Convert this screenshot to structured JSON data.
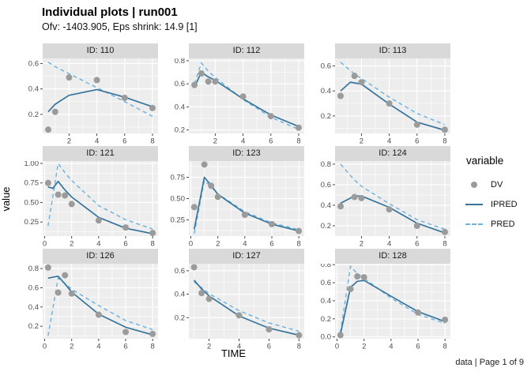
{
  "header": {
    "title": "Individual plots | run001",
    "subtitle": "Ofv: -1403.905, Eps shrink: 14.9 [1]"
  },
  "axes": {
    "x_label": "TIME",
    "y_label": "value"
  },
  "legend": {
    "title": "variable",
    "items": [
      {
        "label": "DV",
        "type": "point"
      },
      {
        "label": "IPRED",
        "type": "solid-line"
      },
      {
        "label": "PRED",
        "type": "dashed-line"
      }
    ]
  },
  "caption": "data | Page 1 of 9",
  "colors": {
    "dv": "#9b9b9b",
    "ipred": "#37749b",
    "pred": "#6fb4de",
    "panel_bg": "#ededed",
    "strip_bg": "#d9d9d9",
    "grid": "#ffffff",
    "tick_mark": "#333333",
    "tick_text": "#4d4d4d"
  },
  "chart_data": {
    "type": "line",
    "facet_by": "ID",
    "x": "TIME",
    "y": "value",
    "series_names": [
      "DV",
      "IPRED",
      "PRED"
    ],
    "facets": [
      {
        "strip": "ID: 110",
        "xlim": [
          0.1,
          8.4
        ],
        "ylim": [
          0.05,
          0.64
        ],
        "xticks": [
          2,
          4,
          6,
          8
        ],
        "xlabels": [
          "2",
          "4",
          "6",
          "8"
        ],
        "yticks": [
          0.2,
          0.4,
          0.6
        ],
        "ylabels": [
          "0.2",
          "0.4",
          "0.6"
        ],
        "dv": [
          [
            0.5,
            0.08
          ],
          [
            1,
            0.22
          ],
          [
            2,
            0.49
          ],
          [
            4,
            0.47
          ],
          [
            6,
            0.33
          ],
          [
            8,
            0.25
          ]
        ],
        "ipred": [
          [
            0.5,
            0.22
          ],
          [
            1,
            0.28
          ],
          [
            2,
            0.35
          ],
          [
            4,
            0.395
          ],
          [
            6,
            0.335
          ],
          [
            8,
            0.26
          ]
        ],
        "pred": [
          [
            0.5,
            0.61
          ],
          [
            1,
            0.575
          ],
          [
            2,
            0.52
          ],
          [
            4,
            0.41
          ],
          [
            6,
            0.3
          ],
          [
            8,
            0.185
          ]
        ]
      },
      {
        "strip": "ID: 112",
        "xlim": [
          0.1,
          8.4
        ],
        "ylim": [
          0.17,
          0.82
        ],
        "xticks": [
          2,
          4,
          6,
          8
        ],
        "xlabels": [
          "2",
          "4",
          "6",
          "8"
        ],
        "yticks": [
          0.2,
          0.4,
          0.6,
          0.8
        ],
        "ylabels": [
          "0.2",
          "0.4",
          "0.6",
          "0.8"
        ],
        "dv": [
          [
            0.5,
            0.59
          ],
          [
            1,
            0.69
          ],
          [
            1.5,
            0.62
          ],
          [
            2,
            0.62
          ],
          [
            4,
            0.49
          ],
          [
            6,
            0.32
          ],
          [
            8,
            0.22
          ]
        ],
        "ipred": [
          [
            0.5,
            0.57
          ],
          [
            1,
            0.7
          ],
          [
            1.5,
            0.66
          ],
          [
            2,
            0.63
          ],
          [
            4,
            0.47
          ],
          [
            6,
            0.33
          ],
          [
            8,
            0.23
          ]
        ],
        "pred": [
          [
            0.5,
            0.6
          ],
          [
            1,
            0.78
          ],
          [
            1.5,
            0.71
          ],
          [
            2,
            0.655
          ],
          [
            4,
            0.465
          ],
          [
            6,
            0.31
          ],
          [
            8,
            0.205
          ]
        ]
      },
      {
        "strip": "ID: 113",
        "xlim": [
          0.1,
          8.4
        ],
        "ylim": [
          0.06,
          0.66
        ],
        "xticks": [
          2,
          4,
          6,
          8
        ],
        "xlabels": [
          "2",
          "4",
          "6",
          "8"
        ],
        "yticks": [
          0.2,
          0.4,
          0.6
        ],
        "ylabels": [
          "0.2",
          "0.4",
          "0.6"
        ],
        "dv": [
          [
            0.5,
            0.36
          ],
          [
            1.5,
            0.52
          ],
          [
            2,
            0.47
          ],
          [
            4,
            0.3
          ],
          [
            6,
            0.13
          ],
          [
            8,
            0.09
          ]
        ],
        "ipred": [
          [
            0.5,
            0.4
          ],
          [
            1.2,
            0.47
          ],
          [
            2,
            0.455
          ],
          [
            4,
            0.295
          ],
          [
            6,
            0.15
          ],
          [
            8,
            0.085
          ]
        ],
        "pred": [
          [
            0.5,
            0.63
          ],
          [
            1.5,
            0.535
          ],
          [
            2,
            0.5
          ],
          [
            4,
            0.35
          ],
          [
            6,
            0.22
          ],
          [
            8,
            0.13
          ]
        ]
      },
      {
        "strip": "ID: 121",
        "xlim": [
          -0.15,
          8.4
        ],
        "ylim": [
          0.07,
          1.03
        ],
        "xticks": [
          0,
          2,
          4,
          6,
          8
        ],
        "xlabels": [
          "0",
          "2",
          "4",
          "6",
          "8"
        ],
        "yticks": [
          0.25,
          0.5,
          0.75,
          1.0
        ],
        "ylabels": [
          "0.25",
          "0.50",
          "0.75",
          "1.00"
        ],
        "dv": [
          [
            0.25,
            0.75
          ],
          [
            1,
            0.6
          ],
          [
            1.5,
            0.59
          ],
          [
            2,
            0.48
          ],
          [
            4,
            0.27
          ],
          [
            6,
            0.18
          ],
          [
            8,
            0.11
          ]
        ],
        "ipred": [
          [
            0.25,
            0.7
          ],
          [
            0.6,
            0.68
          ],
          [
            1,
            0.77
          ],
          [
            1.5,
            0.66
          ],
          [
            2,
            0.57
          ],
          [
            4,
            0.31
          ],
          [
            6,
            0.17
          ],
          [
            8,
            0.1
          ]
        ],
        "pred": [
          [
            0.25,
            0.2
          ],
          [
            1,
            1.0
          ],
          [
            1.5,
            0.88
          ],
          [
            2,
            0.78
          ],
          [
            4,
            0.46
          ],
          [
            6,
            0.28
          ],
          [
            8,
            0.16
          ]
        ]
      },
      {
        "strip": "ID: 123",
        "xlim": [
          -0.15,
          8.4
        ],
        "ylim": [
          0.06,
          0.94
        ],
        "xticks": [
          0,
          2,
          4,
          6,
          8
        ],
        "xlabels": [
          "0",
          "2",
          "4",
          "6",
          "8"
        ],
        "yticks": [
          0.25,
          0.5,
          0.75
        ],
        "ylabels": [
          "0.25",
          "0.50",
          "0.75"
        ],
        "dv": [
          [
            0.25,
            0.4
          ],
          [
            1,
            0.9
          ],
          [
            1.5,
            0.65
          ],
          [
            2,
            0.52
          ],
          [
            4,
            0.31
          ],
          [
            6,
            0.2
          ],
          [
            8,
            0.12
          ]
        ],
        "ipred": [
          [
            0.25,
            0.14
          ],
          [
            1,
            0.75
          ],
          [
            1.5,
            0.655
          ],
          [
            2,
            0.55
          ],
          [
            4,
            0.33
          ],
          [
            6,
            0.2
          ],
          [
            8,
            0.12
          ]
        ],
        "pred": [
          [
            0.25,
            0.09
          ],
          [
            1,
            0.71
          ],
          [
            1.5,
            0.64
          ],
          [
            2,
            0.555
          ],
          [
            4,
            0.345
          ],
          [
            6,
            0.215
          ],
          [
            8,
            0.135
          ]
        ]
      },
      {
        "strip": "ID: 124",
        "xlim": [
          0.1,
          8.4
        ],
        "ylim": [
          0.1,
          0.83
        ],
        "xticks": [
          2,
          4,
          6,
          8
        ],
        "xlabels": [
          "2",
          "4",
          "6",
          "8"
        ],
        "yticks": [
          0.2,
          0.4,
          0.6,
          0.8
        ],
        "ylabels": [
          "0.2",
          "0.4",
          "0.6",
          "0.8"
        ],
        "dv": [
          [
            0.5,
            0.39
          ],
          [
            1.5,
            0.48
          ],
          [
            2,
            0.47
          ],
          [
            4,
            0.36
          ],
          [
            6,
            0.2
          ],
          [
            8,
            0.14
          ]
        ],
        "ipred": [
          [
            0.5,
            0.42
          ],
          [
            1.5,
            0.49
          ],
          [
            2,
            0.49
          ],
          [
            4,
            0.38
          ],
          [
            6,
            0.225
          ],
          [
            8,
            0.13
          ]
        ],
        "pred": [
          [
            0.5,
            0.8
          ],
          [
            1.5,
            0.645
          ],
          [
            2,
            0.585
          ],
          [
            4,
            0.415
          ],
          [
            6,
            0.26
          ],
          [
            8,
            0.165
          ]
        ]
      },
      {
        "strip": "ID: 126",
        "xlim": [
          -0.15,
          8.4
        ],
        "ylim": [
          0.07,
          0.85
        ],
        "xticks": [
          0,
          2,
          4,
          6,
          8
        ],
        "xlabels": [
          "0",
          "2",
          "4",
          "6",
          "8"
        ],
        "yticks": [
          0.2,
          0.4,
          0.6,
          0.8
        ],
        "ylabels": [
          "0.2",
          "0.4",
          "0.6",
          "0.8"
        ],
        "dv": [
          [
            0.25,
            0.81
          ],
          [
            1,
            0.55
          ],
          [
            1.5,
            0.73
          ],
          [
            2,
            0.54
          ],
          [
            4,
            0.32
          ],
          [
            6,
            0.14
          ],
          [
            8,
            0.12
          ]
        ],
        "ipred": [
          [
            0.25,
            0.7
          ],
          [
            1,
            0.72
          ],
          [
            1.5,
            0.64
          ],
          [
            2,
            0.555
          ],
          [
            4,
            0.325
          ],
          [
            6,
            0.19
          ],
          [
            8,
            0.11
          ]
        ],
        "pred": [
          [
            0.25,
            0.1
          ],
          [
            1,
            0.7
          ],
          [
            1.5,
            0.645
          ],
          [
            2,
            0.585
          ],
          [
            4,
            0.415
          ],
          [
            6,
            0.26
          ],
          [
            8,
            0.165
          ]
        ]
      },
      {
        "strip": "ID: 127",
        "xlim": [
          0.65,
          8.35
        ],
        "ylim": [
          0.02,
          0.66
        ],
        "xticks": [
          2,
          4,
          6,
          8
        ],
        "xlabels": [
          "2",
          "4",
          "6",
          "8"
        ],
        "yticks": [
          0.2,
          0.4,
          0.6
        ],
        "ylabels": [
          "0.2",
          "0.4",
          "0.6"
        ],
        "dv": [
          [
            1,
            0.63
          ],
          [
            1.5,
            0.41
          ],
          [
            2,
            0.36
          ],
          [
            4,
            0.22
          ],
          [
            6,
            0.1
          ],
          [
            8,
            0.05
          ]
        ],
        "ipred": [
          [
            1,
            0.52
          ],
          [
            1.5,
            0.445
          ],
          [
            2,
            0.385
          ],
          [
            4,
            0.215
          ],
          [
            6,
            0.11
          ],
          [
            8,
            0.05
          ]
        ],
        "pred": [
          [
            1,
            0.505
          ],
          [
            1.5,
            0.455
          ],
          [
            2,
            0.405
          ],
          [
            4,
            0.26
          ],
          [
            6,
            0.155
          ],
          [
            8,
            0.085
          ]
        ]
      },
      {
        "strip": "ID: 128",
        "xlim": [
          -0.15,
          8.4
        ],
        "ylim": [
          -0.02,
          0.81
        ],
        "xticks": [
          0,
          2,
          4,
          6,
          8
        ],
        "xlabels": [
          "0",
          "2",
          "4",
          "6",
          "8"
        ],
        "yticks": [
          0.0,
          0.2,
          0.4,
          0.6,
          0.8
        ],
        "ylabels": [
          "0.0",
          "0.2",
          "0.4",
          "0.6",
          "0.8"
        ],
        "dv": [
          [
            0.25,
            0.02
          ],
          [
            1,
            0.53
          ],
          [
            1.5,
            0.67
          ],
          [
            2,
            0.66
          ],
          [
            6,
            0.27
          ],
          [
            8,
            0.19
          ]
        ],
        "ipred": [
          [
            0.25,
            0.03
          ],
          [
            1,
            0.55
          ],
          [
            1.5,
            0.615
          ],
          [
            2,
            0.625
          ],
          [
            4,
            0.45
          ],
          [
            6,
            0.28
          ],
          [
            8,
            0.17
          ]
        ],
        "pred": [
          [
            0.25,
            0.05
          ],
          [
            1,
            0.78
          ],
          [
            1.5,
            0.7
          ],
          [
            2,
            0.65
          ],
          [
            4,
            0.43
          ],
          [
            6,
            0.25
          ],
          [
            8,
            0.15
          ]
        ]
      }
    ]
  }
}
